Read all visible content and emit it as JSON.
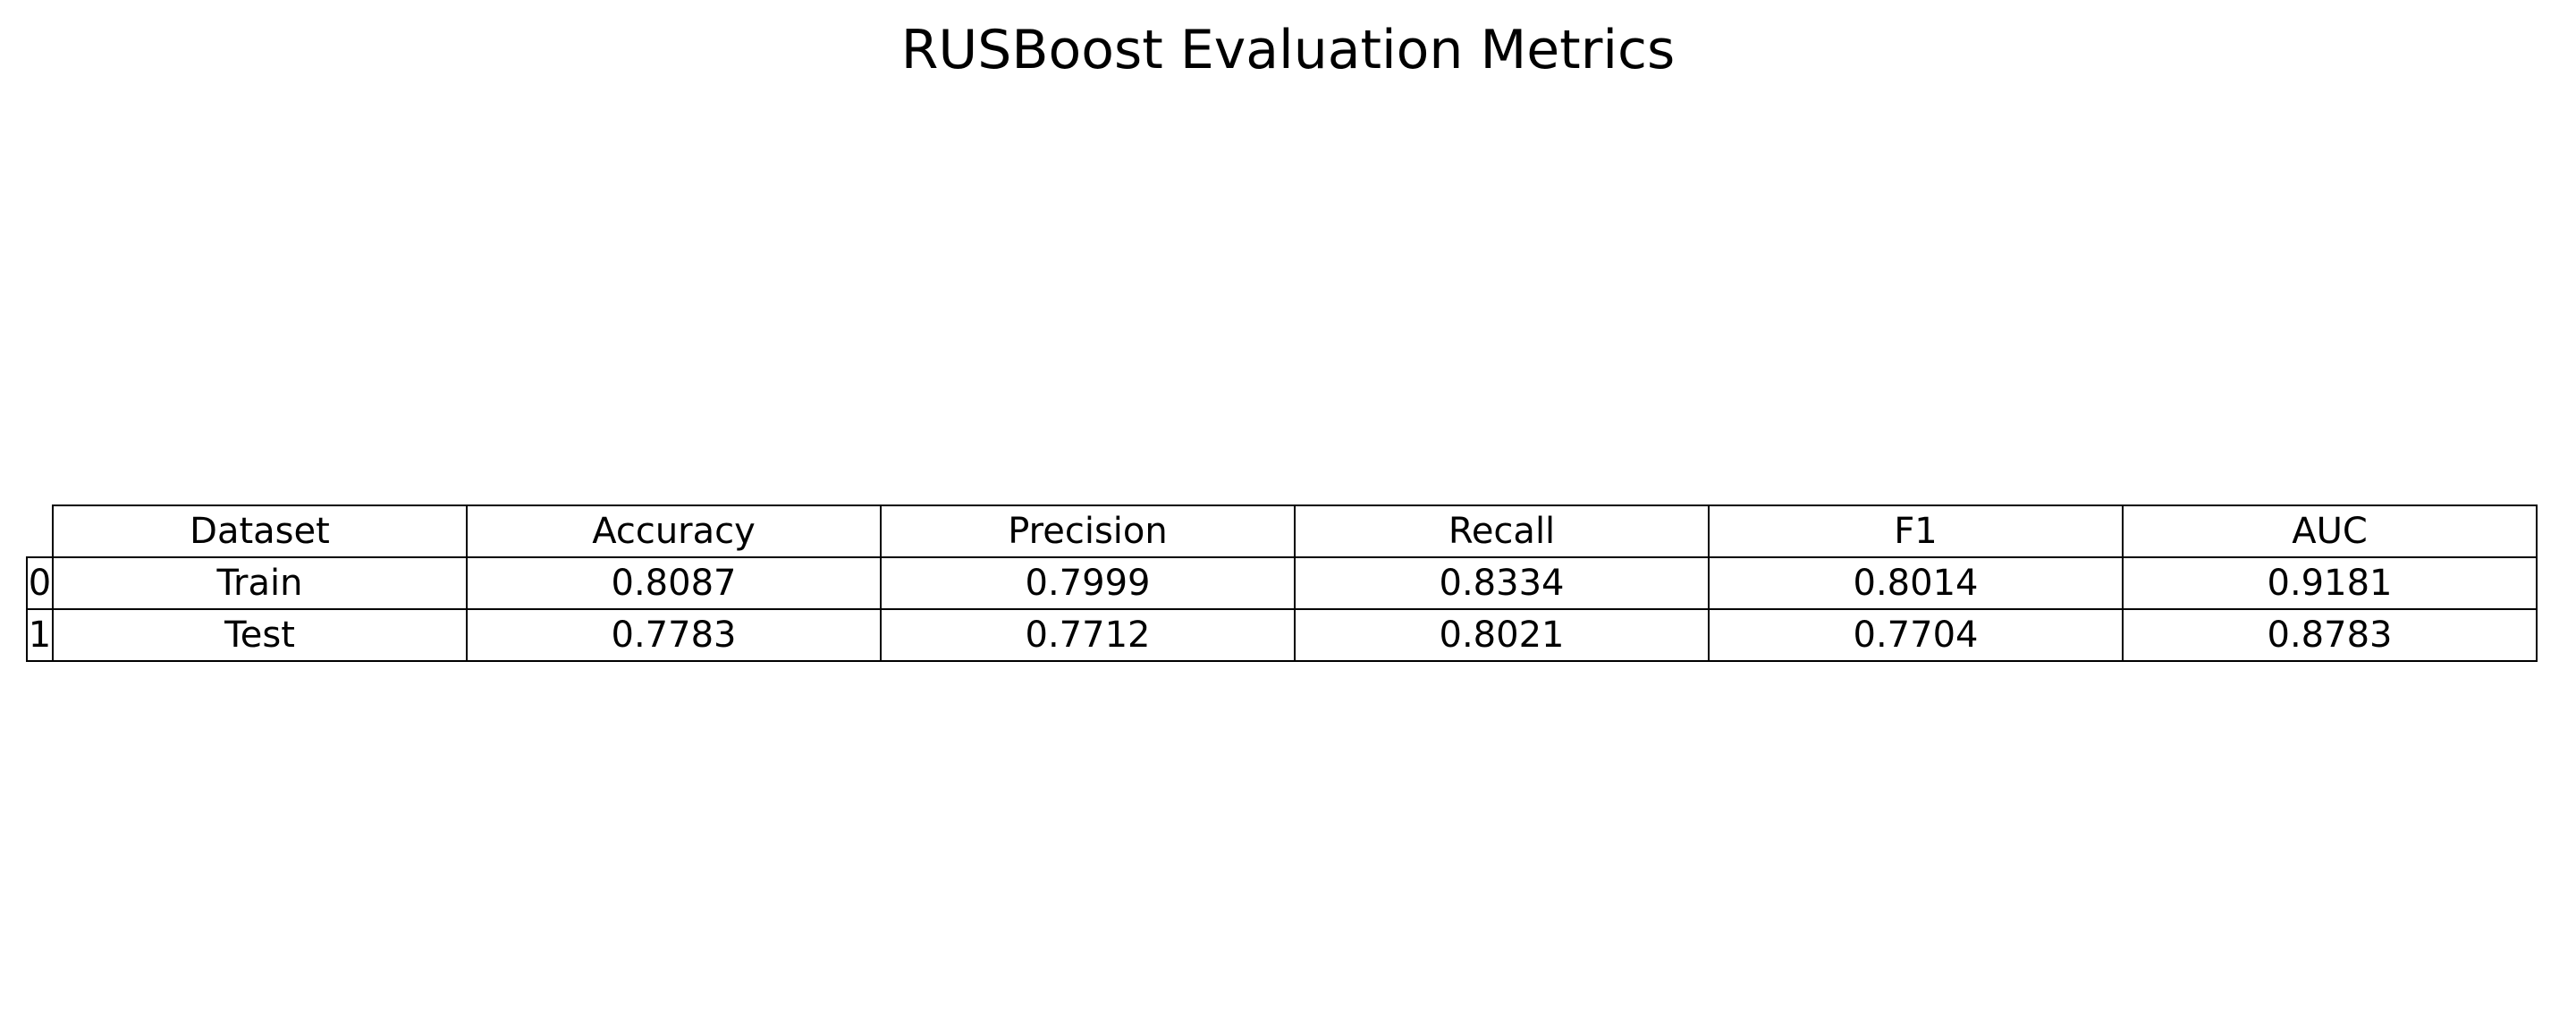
{
  "chart_data": {
    "type": "table",
    "title": "RUSBoost Evaluation Metrics",
    "columns": [
      "Dataset",
      "Accuracy",
      "Precision",
      "Recall",
      "F1",
      "AUC"
    ],
    "rows": [
      {
        "index": "0",
        "cells": [
          "Train",
          "0.8087",
          "0.7999",
          "0.8334",
          "0.8014",
          "0.9181"
        ]
      },
      {
        "index": "1",
        "cells": [
          "Test",
          "0.7783",
          "0.7712",
          "0.8021",
          "0.7704",
          "0.8783"
        ]
      }
    ]
  }
}
